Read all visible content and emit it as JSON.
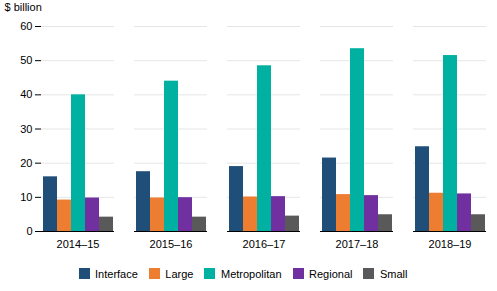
{
  "chart_data": {
    "type": "bar",
    "categories": [
      "2014–15",
      "2015–16",
      "2016–17",
      "2017–18",
      "2018–19"
    ],
    "series": [
      {
        "name": "Interface",
        "color": "#1f4e79",
        "values": [
          16.0,
          17.5,
          19.0,
          21.5,
          24.8
        ]
      },
      {
        "name": "Large",
        "color": "#ed7d31",
        "values": [
          9.2,
          9.8,
          10.1,
          10.8,
          11.2
        ]
      },
      {
        "name": "Metropolitan",
        "color": "#00b0a0",
        "values": [
          40.0,
          44.0,
          48.5,
          53.5,
          51.5
        ]
      },
      {
        "name": "Regional",
        "color": "#7030a0",
        "values": [
          9.8,
          9.9,
          10.2,
          10.5,
          11.0
        ]
      },
      {
        "name": "Small",
        "color": "#595959",
        "values": [
          4.2,
          4.2,
          4.5,
          4.9,
          4.9
        ]
      }
    ],
    "ylabel": "$ billion",
    "ylim": [
      0,
      60
    ],
    "yticks": [
      0,
      10,
      20,
      30,
      40,
      50,
      60
    ],
    "grid": true,
    "legend": "bottom"
  }
}
